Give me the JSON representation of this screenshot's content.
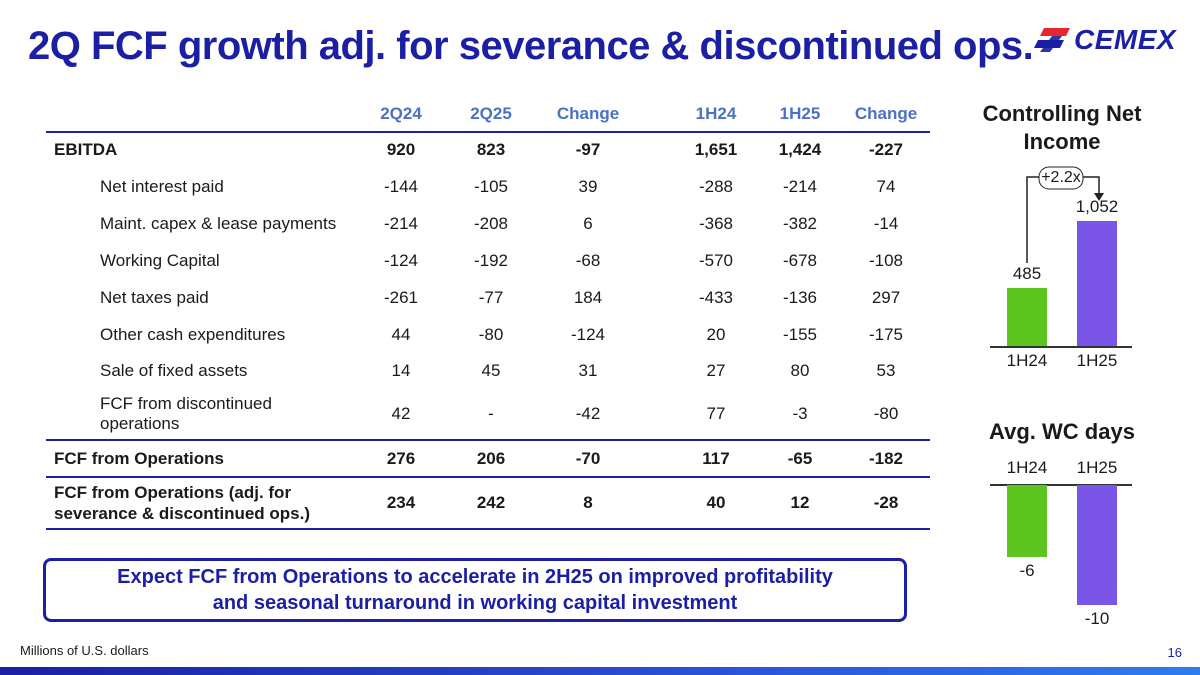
{
  "title": "2Q FCF growth adj. for severance & discontinued ops.",
  "logo": {
    "text": "CEMEX"
  },
  "table": {
    "headers": [
      "2Q24",
      "2Q25",
      "Change",
      "1H24",
      "1H25",
      "Change"
    ],
    "rows": [
      {
        "label": "EBITDA",
        "values": [
          "920",
          "823",
          "-97",
          "1,651",
          "1,424",
          "-227"
        ]
      },
      {
        "label": "Net interest paid",
        "values": [
          "-144",
          "-105",
          "39",
          "-288",
          "-214",
          "74"
        ]
      },
      {
        "label": "Maint. capex & lease payments",
        "values": [
          "-214",
          "-208",
          "6",
          "-368",
          "-382",
          "-14"
        ]
      },
      {
        "label": "Working Capital",
        "values": [
          "-124",
          "-192",
          "-68",
          "-570",
          "-678",
          "-108"
        ]
      },
      {
        "label": "Net taxes paid",
        "values": [
          "-261",
          "-77",
          "184",
          "-433",
          "-136",
          "297"
        ]
      },
      {
        "label": "Other cash expenditures",
        "values": [
          "44",
          "-80",
          "-124",
          "20",
          "-155",
          "-175"
        ]
      },
      {
        "label": "Sale of fixed assets",
        "values": [
          "14",
          "45",
          "31",
          "27",
          "80",
          "53"
        ]
      },
      {
        "label": "FCF from discontinued operations",
        "values": [
          "42",
          "-",
          "-42",
          "77",
          "-3",
          "-80"
        ]
      },
      {
        "label": "FCF from Operations",
        "values": [
          "276",
          "206",
          "-70",
          "117",
          "-65",
          "-182"
        ]
      },
      {
        "label": "FCF from Operations (adj. for severance & discontinued ops.)",
        "values": [
          "234",
          "242",
          "8",
          "40",
          "12",
          "-28"
        ]
      }
    ]
  },
  "callout": {
    "line1": "Expect FCF from Operations to accelerate in 2H25 on improved profitability",
    "line2": "and seasonal turnaround in working capital investment"
  },
  "footnote": "Millions of U.S. dollars",
  "page_number": "16",
  "colors": {
    "brand": "#1a1fa3",
    "header": "#4a72c4",
    "green": "#5cc41f",
    "purple": "#7a55e8"
  },
  "chart_data": [
    {
      "type": "bar",
      "title": "Controlling Net Income",
      "categories": [
        "1H24",
        "1H25"
      ],
      "values": [
        485,
        1052
      ],
      "value_labels": [
        "485",
        "1,052"
      ],
      "annotation": "+2.2x",
      "colors": [
        "#5cc41f",
        "#7a55e8"
      ]
    },
    {
      "type": "bar",
      "title": "Avg. WC days",
      "categories": [
        "1H24",
        "1H25"
      ],
      "values": [
        -6,
        -10
      ],
      "value_labels": [
        "-6",
        "-10"
      ],
      "colors": [
        "#5cc41f",
        "#7a55e8"
      ]
    }
  ]
}
